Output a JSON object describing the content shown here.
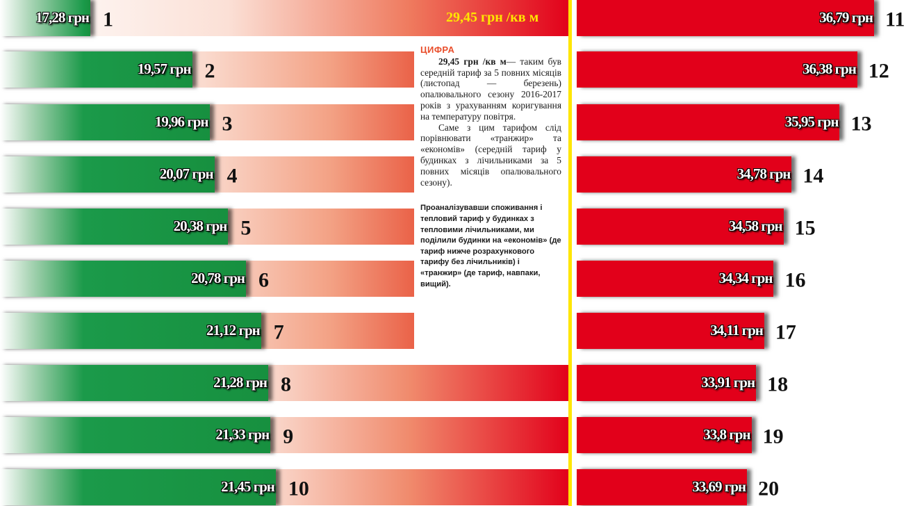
{
  "chart_data": {
    "type": "bar",
    "title": "",
    "xlabel": "",
    "ylabel": "",
    "unit": "грн",
    "xlim": [
      0,
      40
    ],
    "average": {
      "value": 29.45,
      "label": "29,45 грн /кв м"
    },
    "green_color": "#1b9a4a",
    "red_color": "#e2001a",
    "divider_color": "#ffe600",
    "groups": [
      {
        "name": "",
        "bars": [
          {
            "rank": "1",
            "value": 17.28,
            "label": "17,28 грн"
          },
          {
            "rank": "2",
            "value": 19.57,
            "label": "19,57 грн"
          },
          {
            "rank": "3",
            "value": 19.96,
            "label": "19,96 грн"
          },
          {
            "rank": "4",
            "value": 20.07,
            "label": "20,07 грн"
          },
          {
            "rank": "5",
            "value": 20.38,
            "label": "20,38 грн"
          },
          {
            "rank": "6",
            "value": 20.78,
            "label": "20,78 грн"
          },
          {
            "rank": "7",
            "value": 21.12,
            "label": "21,12 грн"
          },
          {
            "rank": "8",
            "value": 21.28,
            "label": "21,28 грн"
          },
          {
            "rank": "9",
            "value": 21.33,
            "label": "21,33 грн"
          },
          {
            "rank": "10",
            "value": 21.45,
            "label": "21,45 грн"
          }
        ]
      },
      {
        "name": "",
        "bars": [
          {
            "rank": "11",
            "value": 36.79,
            "label": "36,79 грн"
          },
          {
            "rank": "12",
            "value": 36.38,
            "label": "36,38 грн"
          },
          {
            "rank": "13",
            "value": 35.95,
            "label": "35,95 грн"
          },
          {
            "rank": "14",
            "value": 34.78,
            "label": "34,78 грн"
          },
          {
            "rank": "15",
            "value": 34.58,
            "label": "34,58 грн"
          },
          {
            "rank": "16",
            "value": 34.34,
            "label": "34,34 грн"
          },
          {
            "rank": "17",
            "value": 34.11,
            "label": "34,11 грн"
          },
          {
            "rank": "18",
            "value": 33.91,
            "label": "33,91 грн"
          },
          {
            "rank": "19",
            "value": 33.8,
            "label": "33,8 грн"
          },
          {
            "rank": "20",
            "value": 33.69,
            "label": "33,69 грн"
          }
        ]
      }
    ]
  },
  "sidebar": {
    "heading": "ЦИФРА",
    "lead": "29,45 грн /кв м",
    "para1": "— таким був середній тариф за 5 повних місяців (листопад — березень) опалювального сезону 2016-2017 років з урахуванням коригування на температуру повітря.",
    "para2": "Саме з цим тарифом слід порівнювати «транжир» та «економів» (середній тариф у будинках з лічильниками за 5 повних місяців опалювального сезону).",
    "note": "Проаналізувавши споживання і тепловий тариф у будинках з тепловими лічильниками, ми поділили будинки на «економів» (де тариф нижче розрахункового тарифу без лічильників) і «транжир» (де тариф, навпаки, вищий)."
  }
}
